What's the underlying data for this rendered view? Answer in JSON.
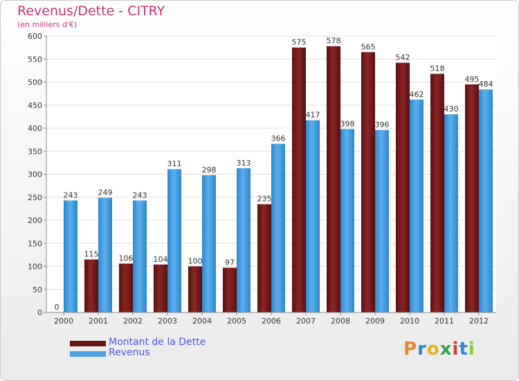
{
  "header": {
    "title": "Revenus/Dette - CITRY",
    "subtitle": "(en milliers d'€)"
  },
  "brand": {
    "logo_letters": [
      "P",
      "r",
      "o",
      "x",
      "i",
      "t",
      "i"
    ],
    "logo_colors": [
      "#e8862a",
      "#2a8ad8",
      "#e8b020",
      "#3aa050",
      "#d83a3a",
      "#2a8ad8",
      "#8acb30"
    ]
  },
  "colors": {
    "debt": "#7a1a1a",
    "revenue": "#4aa0e0"
  },
  "chart_data": {
    "type": "bar",
    "title": "Revenus/Dette - CITRY",
    "ylabel": "(en milliers d'€)",
    "categories": [
      "2000",
      "2001",
      "2002",
      "2003",
      "2004",
      "2005",
      "2006",
      "2007",
      "2008",
      "2009",
      "2010",
      "2011",
      "2012"
    ],
    "series": [
      {
        "name": "Montant de la Dette",
        "values": [
          0,
          115,
          106,
          104,
          100,
          97,
          235,
          575,
          578,
          565,
          542,
          518,
          495
        ]
      },
      {
        "name": "Revenus",
        "values": [
          243,
          249,
          243,
          311,
          298,
          313,
          366,
          417,
          398,
          396,
          462,
          430,
          484
        ]
      }
    ],
    "ylim": [
      0,
      600
    ],
    "yticks": [
      0,
      50,
      100,
      150,
      200,
      250,
      300,
      350,
      400,
      450,
      500,
      550,
      600
    ],
    "grid": true,
    "legend": "bottom-left"
  }
}
